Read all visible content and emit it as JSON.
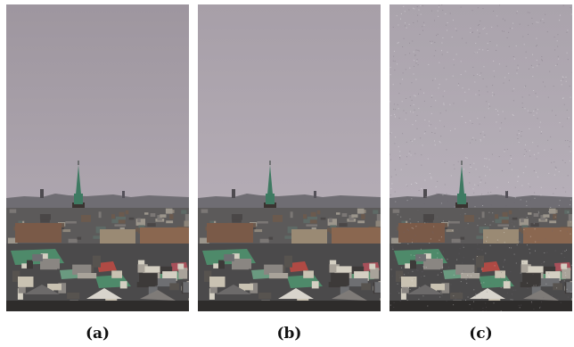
{
  "panels": [
    {
      "id": "a",
      "label": "(a)",
      "sky_top": "#9e969f",
      "sky_bottom": "#b6aeb7",
      "noise": 0.0
    },
    {
      "id": "b",
      "label": "(b)",
      "sky_top": "#a79fa8",
      "sky_bottom": "#bbb3bc",
      "noise": 0.0
    },
    {
      "id": "c",
      "label": "(c)",
      "sky_top": "#aaa3ac",
      "sky_bottom": "#bdb6bf",
      "noise": 0.35
    }
  ],
  "colors": {
    "spire_green": "#3e7a62",
    "roof_green": "#4e8a6a",
    "dark_building": "#3a3330",
    "brick": "#7a5a48",
    "roof_red": "#b04a44",
    "roof_grey": "#6e6f72",
    "facade_light": "#c9c2b2"
  }
}
